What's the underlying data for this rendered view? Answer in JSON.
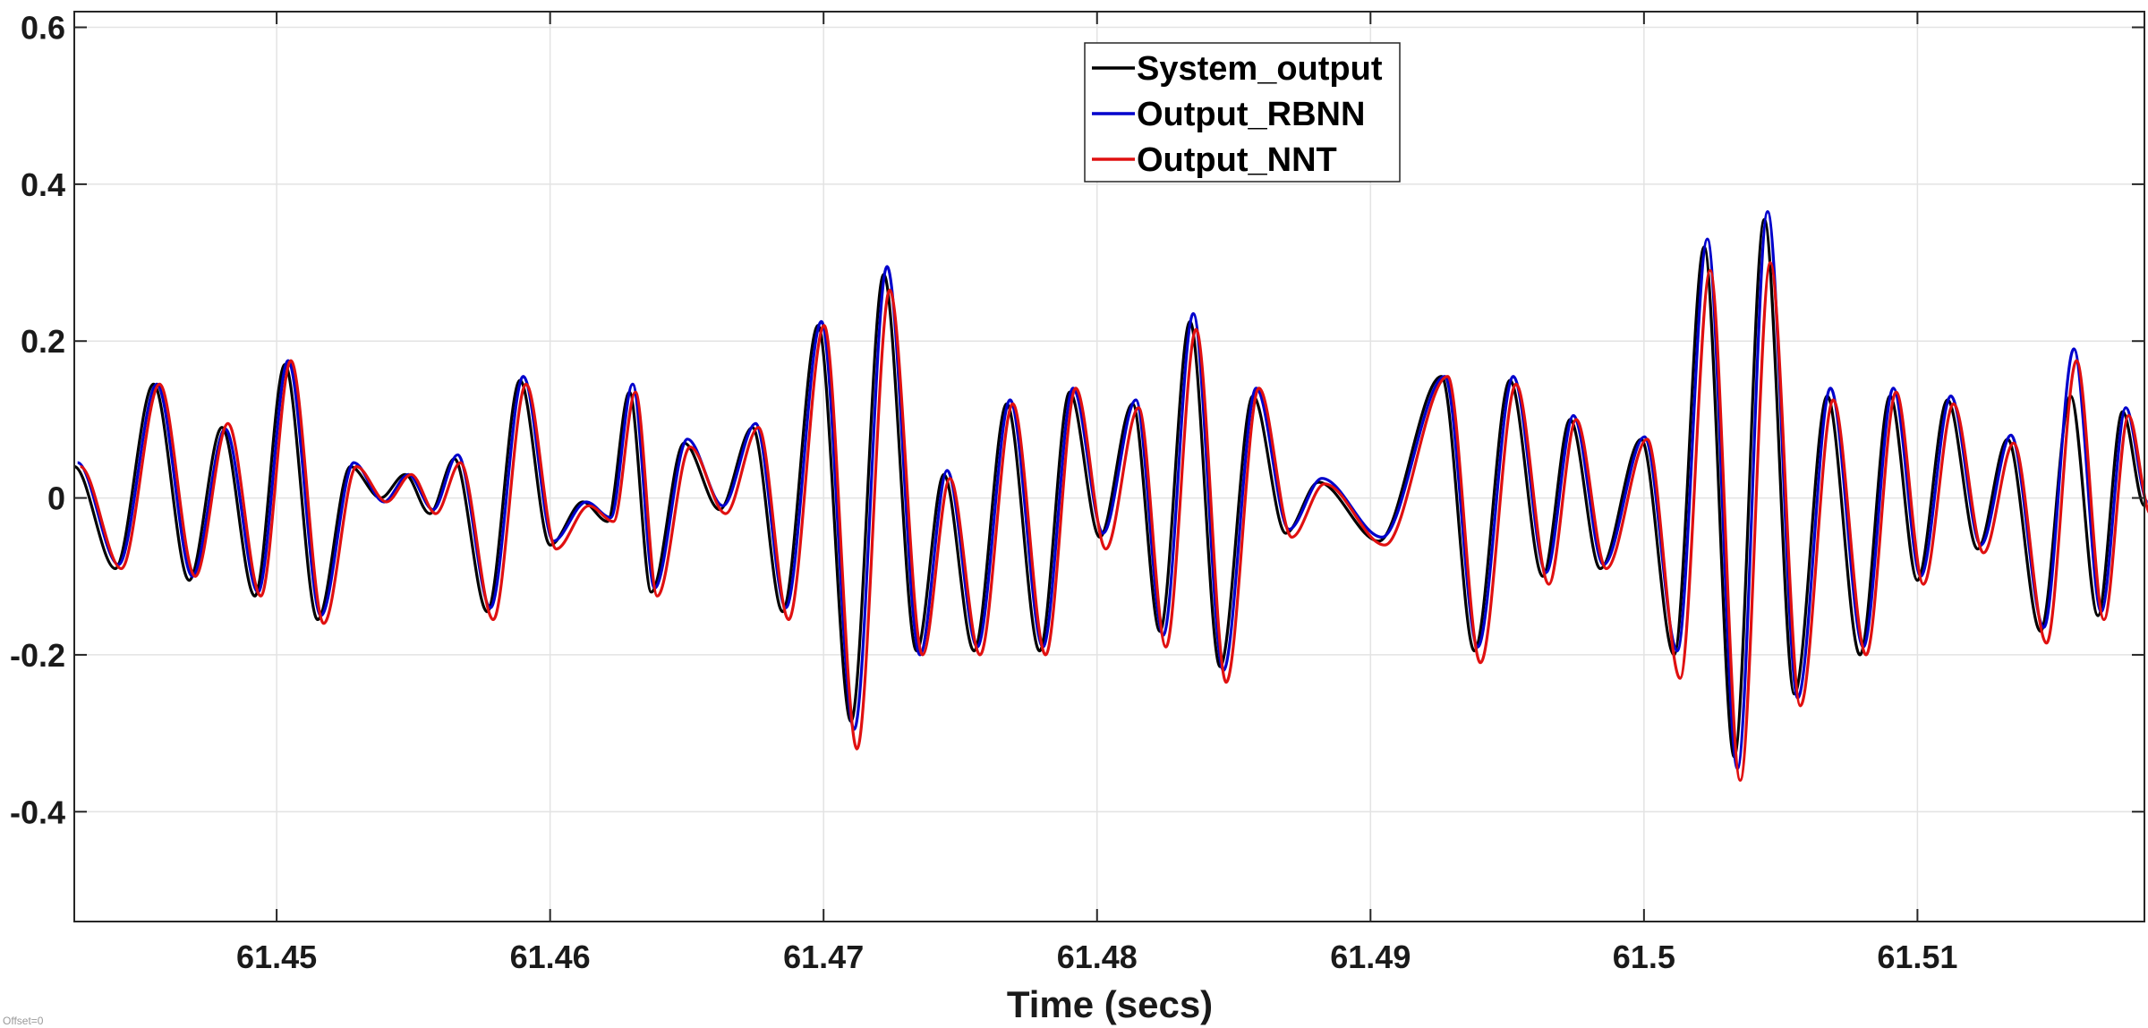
{
  "chart_data": {
    "type": "line",
    "title": "",
    "xlabel": "Time (secs)",
    "ylabel": "",
    "xlim": [
      61.4426,
      61.5183
    ],
    "ylim": [
      -0.54,
      0.62
    ],
    "x_ticks": [
      61.45,
      61.46,
      61.47,
      61.48,
      61.49,
      61.5,
      61.51
    ],
    "x_tick_labels": [
      "61.45",
      "61.46",
      "61.47",
      "61.48",
      "61.49",
      "61.5",
      "61.51"
    ],
    "y_ticks": [
      0.6,
      0.4,
      0.2,
      0,
      -0.2,
      -0.4
    ],
    "y_tick_labels": [
      "0.6",
      "0.4",
      "0.2",
      "0",
      "-0.2",
      "-0.4"
    ],
    "grid": true,
    "legend_position": "top-center",
    "series": [
      {
        "name": "System_output",
        "color": "#000000"
      },
      {
        "name": "Output_RBNN",
        "color": "#0000cc"
      },
      {
        "name": "Output_NNT",
        "color": "#e01010"
      }
    ],
    "x": [
      61.4426,
      61.4441,
      61.4455,
      61.4468,
      61.448,
      61.4492,
      61.4503,
      61.4515,
      61.4527,
      61.4538,
      61.4547,
      61.4556,
      61.4565,
      61.4577,
      61.4589,
      61.46,
      61.4612,
      61.4621,
      61.4629,
      61.4637,
      61.4649,
      61.4662,
      61.4674,
      61.4685,
      61.4698,
      61.471,
      61.4722,
      61.4734,
      61.4744,
      61.4755,
      61.4767,
      61.4779,
      61.479,
      61.4801,
      61.4813,
      61.4823,
      61.4834,
      61.4845,
      61.4857,
      61.4869,
      61.4881,
      61.4903,
      61.4926,
      61.4938,
      61.4951,
      61.4963,
      61.4973,
      61.4984,
      61.4999,
      61.5011,
      61.5022,
      61.5033,
      61.5044,
      61.5055,
      61.5067,
      61.5079,
      61.509,
      61.51,
      61.5111,
      61.5122,
      61.5133,
      61.5145,
      61.5156,
      61.5166,
      61.5175,
      61.5183
    ],
    "y_system": [
      0.04,
      -0.09,
      0.145,
      -0.105,
      0.09,
      -0.125,
      0.17,
      -0.155,
      0.04,
      0.0,
      0.03,
      -0.02,
      0.05,
      -0.145,
      0.15,
      -0.06,
      -0.005,
      -0.03,
      0.135,
      -0.12,
      0.07,
      -0.015,
      0.09,
      -0.145,
      0.22,
      -0.285,
      0.285,
      -0.195,
      0.03,
      -0.195,
      0.12,
      -0.195,
      0.135,
      -0.05,
      0.12,
      -0.17,
      0.225,
      -0.215,
      0.13,
      -0.045,
      0.02,
      -0.055,
      0.155,
      -0.195,
      0.15,
      -0.1,
      0.1,
      -0.09,
      0.075,
      -0.2,
      0.32,
      -0.33,
      0.355,
      -0.25,
      0.13,
      -0.2,
      0.13,
      -0.105,
      0.125,
      -0.065,
      0.075,
      -0.17,
      0.13,
      -0.15,
      0.11,
      -0.01
    ],
    "y_rbnn": [
      0.045,
      -0.085,
      0.145,
      -0.1,
      0.088,
      -0.12,
      0.175,
      -0.15,
      0.045,
      -0.005,
      0.03,
      -0.015,
      0.055,
      -0.14,
      0.155,
      -0.055,
      -0.005,
      -0.025,
      0.145,
      -0.115,
      0.075,
      -0.01,
      0.095,
      -0.14,
      0.225,
      -0.295,
      0.295,
      -0.2,
      0.035,
      -0.19,
      0.125,
      -0.19,
      0.14,
      -0.045,
      0.125,
      -0.175,
      0.235,
      -0.22,
      0.14,
      -0.04,
      0.025,
      -0.05,
      0.155,
      -0.19,
      0.155,
      -0.095,
      0.105,
      -0.085,
      0.078,
      -0.195,
      0.33,
      -0.345,
      0.365,
      -0.255,
      0.14,
      -0.19,
      0.14,
      -0.1,
      0.13,
      -0.06,
      0.08,
      -0.165,
      0.19,
      -0.145,
      0.115,
      -0.005
    ],
    "y_nnt": [
      0.04,
      -0.09,
      0.145,
      -0.1,
      0.095,
      -0.125,
      0.175,
      -0.16,
      0.04,
      -0.005,
      0.03,
      -0.02,
      0.045,
      -0.155,
      0.145,
      -0.065,
      -0.01,
      -0.03,
      0.135,
      -0.125,
      0.065,
      -0.02,
      0.09,
      -0.155,
      0.22,
      -0.32,
      0.265,
      -0.2,
      0.025,
      -0.2,
      0.12,
      -0.2,
      0.14,
      -0.065,
      0.115,
      -0.19,
      0.215,
      -0.235,
      0.14,
      -0.05,
      0.018,
      -0.06,
      0.155,
      -0.21,
      0.145,
      -0.11,
      0.1,
      -0.09,
      0.075,
      -0.23,
      0.29,
      -0.36,
      0.3,
      -0.265,
      0.125,
      -0.2,
      0.135,
      -0.11,
      0.12,
      -0.07,
      0.07,
      -0.185,
      0.175,
      -0.155,
      0.105,
      -0.02
    ]
  },
  "footnote": "Offset=0"
}
